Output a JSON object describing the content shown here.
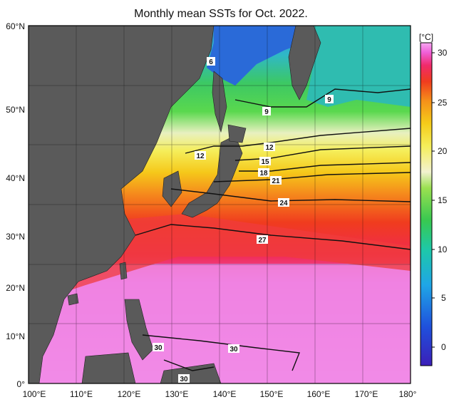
{
  "title": "Monthly mean SSTs for Oct. 2022.",
  "map": {
    "lat_ticks": [
      "60°N",
      "50°N",
      "40°N",
      "30°N",
      "20°N",
      "10°N",
      "0°"
    ],
    "lon_ticks": [
      "100°E",
      "110°E",
      "120°E",
      "130°E",
      "140°E",
      "150°E",
      "160°E",
      "170°E",
      "180°"
    ],
    "lat_range": [
      0,
      60
    ],
    "lon_range": [
      100,
      180
    ],
    "land_color": "#5a5a5a",
    "grid": true
  },
  "colorbar": {
    "unit": "[°C]",
    "ticks": [
      "30",
      "25",
      "20",
      "15",
      "10",
      "5",
      "0"
    ],
    "range": [
      -2,
      31
    ]
  },
  "isotherm_labels": [
    "6",
    "9",
    "9",
    "12",
    "12",
    "15",
    "18",
    "21",
    "24",
    "27",
    "30",
    "30",
    "30"
  ],
  "colors": {
    "c0": "#1a1aa8",
    "c5": "#1f8fe6",
    "c8": "#16c7c0",
    "c11": "#3cc864",
    "c14": "#8ee05a",
    "c16": "#f2f2c8",
    "c18": "#f5f06a",
    "c21": "#f5d21e",
    "c24": "#f59a1c",
    "c26": "#f04a1e",
    "c28": "#f0245a",
    "c30": "#f058d2",
    "c31": "#f59af0"
  }
}
